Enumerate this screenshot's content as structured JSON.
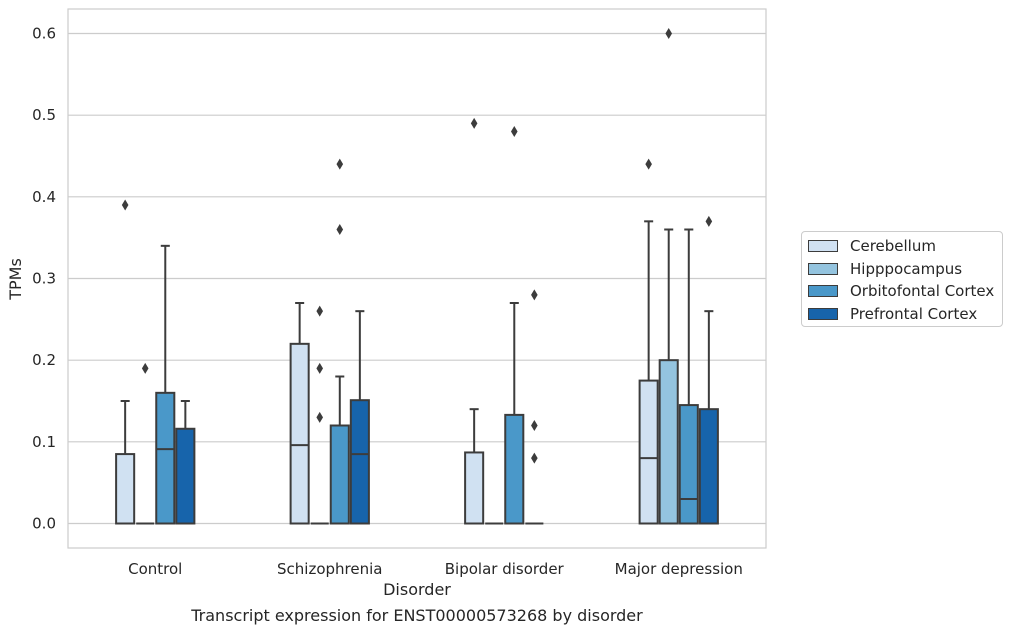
{
  "chart_data": {
    "type": "box",
    "xlabel": "Disorder",
    "ylabel": "TPMs",
    "caption": "Transcript expression for ENST00000573268 by disorder",
    "categories": [
      "Control",
      "Schizophrenia",
      "Bipolar disorder",
      "Major depression"
    ],
    "ylim": [
      -0.03,
      0.63
    ],
    "yticks": [
      "0.0",
      "0.1",
      "0.2",
      "0.3",
      "0.4",
      "0.5",
      "0.6"
    ],
    "ytick_values": [
      0.0,
      0.1,
      0.2,
      0.3,
      0.4,
      0.5,
      0.6
    ],
    "grid": true,
    "legend_position": "right",
    "series": [
      {
        "name": "Cerebellum",
        "color": "#d0e1f2",
        "boxes": [
          {
            "q1": 0.0,
            "median": 0.0,
            "q3": 0.085,
            "whisker_low": 0.0,
            "whisker_high": 0.15,
            "outliers": [
              0.39
            ]
          },
          {
            "q1": 0.0,
            "median": 0.096,
            "q3": 0.22,
            "whisker_low": 0.0,
            "whisker_high": 0.27,
            "outliers": []
          },
          {
            "q1": 0.0,
            "median": 0.0,
            "q3": 0.087,
            "whisker_low": 0.0,
            "whisker_high": 0.14,
            "outliers": [
              0.49
            ]
          },
          {
            "q1": 0.0,
            "median": 0.08,
            "q3": 0.175,
            "whisker_low": 0.0,
            "whisker_high": 0.37,
            "outliers": [
              0.44
            ]
          }
        ]
      },
      {
        "name": "Hipppocampus",
        "color": "#94c4df",
        "boxes": [
          {
            "q1": 0.0,
            "median": 0.0,
            "q3": 0.0,
            "whisker_low": 0.0,
            "whisker_high": 0.0,
            "outliers": [
              0.19
            ]
          },
          {
            "q1": 0.0,
            "median": 0.0,
            "q3": 0.0,
            "whisker_low": 0.0,
            "whisker_high": 0.0,
            "outliers": [
              0.13,
              0.19,
              0.26
            ]
          },
          {
            "q1": 0.0,
            "median": 0.0,
            "q3": 0.0,
            "whisker_low": 0.0,
            "whisker_high": 0.0,
            "outliers": []
          },
          {
            "q1": 0.0,
            "median": 0.0,
            "q3": 0.2,
            "whisker_low": 0.0,
            "whisker_high": 0.36,
            "outliers": [
              0.6
            ]
          }
        ]
      },
      {
        "name": "Orbitofontal Cortex",
        "color": "#4a98c9",
        "boxes": [
          {
            "q1": 0.0,
            "median": 0.091,
            "q3": 0.16,
            "whisker_low": 0.0,
            "whisker_high": 0.34,
            "outliers": []
          },
          {
            "q1": 0.0,
            "median": 0.0,
            "q3": 0.12,
            "whisker_low": 0.0,
            "whisker_high": 0.18,
            "outliers": [
              0.36,
              0.44
            ]
          },
          {
            "q1": 0.0,
            "median": 0.0,
            "q3": 0.133,
            "whisker_low": 0.0,
            "whisker_high": 0.27,
            "outliers": [
              0.48
            ]
          },
          {
            "q1": 0.0,
            "median": 0.03,
            "q3": 0.145,
            "whisker_low": 0.0,
            "whisker_high": 0.36,
            "outliers": []
          }
        ]
      },
      {
        "name": "Prefrontal Cortex",
        "color": "#1764ab",
        "boxes": [
          {
            "q1": 0.0,
            "median": 0.0,
            "q3": 0.116,
            "whisker_low": 0.0,
            "whisker_high": 0.15,
            "outliers": []
          },
          {
            "q1": 0.0,
            "median": 0.085,
            "q3": 0.151,
            "whisker_low": 0.0,
            "whisker_high": 0.26,
            "outliers": []
          },
          {
            "q1": 0.0,
            "median": 0.0,
            "q3": 0.0,
            "whisker_low": 0.0,
            "whisker_high": 0.0,
            "outliers": [
              0.08,
              0.12,
              0.28
            ]
          },
          {
            "q1": 0.0,
            "median": 0.0,
            "q3": 0.14,
            "whisker_low": 0.0,
            "whisker_high": 0.26,
            "outliers": [
              0.37
            ]
          }
        ]
      }
    ]
  }
}
